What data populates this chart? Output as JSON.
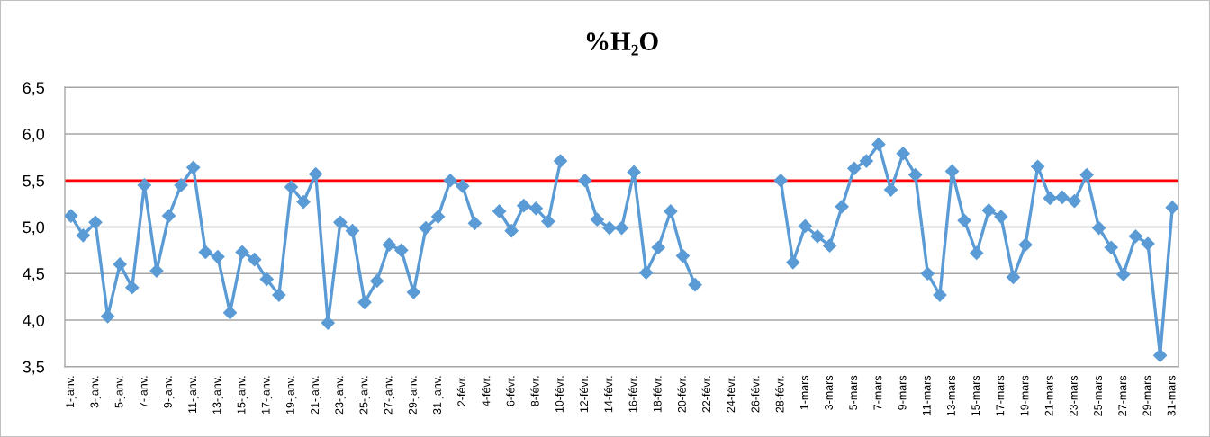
{
  "chart_data": {
    "type": "line",
    "title": "%H₂O",
    "categories": [
      "1-janv.",
      null,
      "3-janv.",
      null,
      "5-janv.",
      null,
      "7-janv.",
      null,
      "9-janv.",
      null,
      "11-janv.",
      null,
      "13-janv.",
      null,
      "15-janv.",
      null,
      "17-janv.",
      null,
      "19-janv.",
      null,
      "21-janv.",
      null,
      "23-janv.",
      null,
      "25-janv.",
      null,
      "27-janv.",
      null,
      "29-janv.",
      null,
      "31-janv.",
      null,
      "2-févr.",
      null,
      "4-févr.",
      null,
      "6-févr.",
      null,
      "8-févr.",
      null,
      "10-févr.",
      null,
      "12-févr.",
      null,
      "14-févr.",
      null,
      "16-févr.",
      null,
      "18-févr.",
      null,
      "20-févr.",
      null,
      "22-févr.",
      null,
      "24-févr.",
      null,
      "26-févr.",
      null,
      "28-févr.",
      null,
      "1-mars",
      null,
      "3-mars",
      null,
      "5-mars",
      null,
      "7-mars",
      null,
      "9-mars",
      null,
      "11-mars",
      null,
      "13-mars",
      null,
      "15-mars",
      null,
      "17-mars",
      null,
      "19-mars",
      null,
      "21-mars",
      null,
      "23-mars",
      null,
      "25-mars",
      null,
      "27-mars",
      null,
      "29-mars",
      null,
      "31-mars"
    ],
    "series": [
      {
        "color": "#5b9bd5",
        "values": [
          5.12,
          4.91,
          5.05,
          4.04,
          4.6,
          4.35,
          5.45,
          4.53,
          5.12,
          5.45,
          5.64,
          4.73,
          4.68,
          4.08,
          4.73,
          4.65,
          4.44,
          4.27,
          5.43,
          5.27,
          5.57,
          3.97,
          5.05,
          4.96,
          4.19,
          4.42,
          4.81,
          4.75,
          4.3,
          4.99,
          5.11,
          5.5,
          5.44,
          5.04,
          null,
          5.17,
          4.96,
          5.23,
          5.2,
          5.06,
          5.71,
          null,
          5.5,
          5.08,
          4.99,
          4.99,
          5.59,
          4.51,
          4.78,
          5.17,
          4.69,
          4.38,
          null,
          null,
          null,
          null,
          null,
          null,
          5.5,
          4.62,
          5.01,
          4.9,
          4.8,
          5.22,
          5.63,
          5.71,
          5.89,
          5.4,
          5.79,
          5.56,
          4.5,
          4.27,
          5.6,
          5.07,
          4.72,
          5.18,
          5.11,
          4.46,
          4.81,
          5.65,
          5.31,
          5.32,
          5.28,
          5.56,
          4.99,
          4.78,
          4.49,
          4.9,
          4.82,
          3.62,
          5.21
        ]
      }
    ],
    "ylim": [
      3.5,
      6.5
    ],
    "yticks": [
      {
        "value": 3.5,
        "label": "3,5"
      },
      {
        "value": 4.0,
        "label": "4,0"
      },
      {
        "value": 4.5,
        "label": "4,5"
      },
      {
        "value": 5.0,
        "label": "5,0"
      },
      {
        "value": 5.5,
        "label": "5,5"
      },
      {
        "value": 6.0,
        "label": "6,0"
      },
      {
        "value": 6.5,
        "label": "6,5"
      }
    ],
    "grid": "y",
    "marker": "diamond",
    "line_style": "solid",
    "ref_lines": [
      {
        "axis": "y",
        "value": 5.5,
        "color": "#ff0000"
      }
    ]
  }
}
